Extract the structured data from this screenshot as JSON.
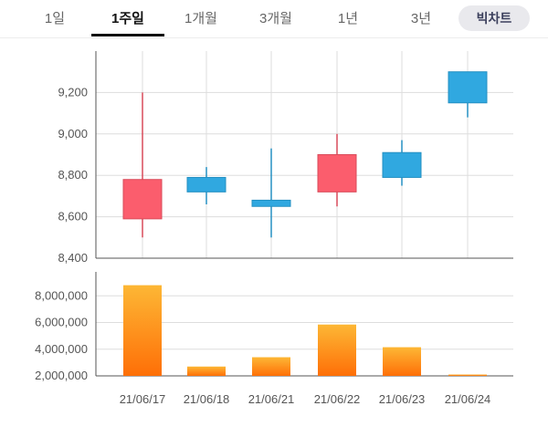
{
  "tabs": {
    "items": [
      {
        "label": "1일"
      },
      {
        "label": "1주일"
      },
      {
        "label": "1개월"
      },
      {
        "label": "3개월"
      },
      {
        "label": "1년"
      },
      {
        "label": "3년"
      }
    ],
    "active_index": 1,
    "pill_label": "빅차트"
  },
  "colors": {
    "up": "#fb5d6d",
    "down": "#30a8e0",
    "volume_top": "#fdb735",
    "volume_bottom": "#fe6f07",
    "grid": "#dddddd",
    "axis": "#555555"
  },
  "chart_data": [
    {
      "type": "candlestick",
      "x": [
        "21/06/17",
        "21/06/18",
        "21/06/21",
        "21/06/22",
        "21/06/23",
        "21/06/24"
      ],
      "open": [
        8590,
        8790,
        8680,
        8720,
        8910,
        9300
      ],
      "close": [
        8780,
        8720,
        8650,
        8900,
        8790,
        9150
      ],
      "high": [
        9200,
        8840,
        8930,
        9000,
        8970,
        9300
      ],
      "low": [
        8500,
        8660,
        8500,
        8650,
        8750,
        9080
      ],
      "ylim": [
        8400,
        9400
      ],
      "yticks": [
        8400,
        8600,
        8800,
        9000,
        9200
      ],
      "ytick_labels": [
        "8,400",
        "8,600",
        "8,800",
        "9,000",
        "9,200"
      ],
      "grid": true
    },
    {
      "type": "bar",
      "categories": [
        "21/06/17",
        "21/06/18",
        "21/06/21",
        "21/06/22",
        "21/06/23",
        "21/06/24"
      ],
      "values": [
        8800000,
        2700000,
        3400000,
        5850000,
        4150000,
        2100000
      ],
      "ylim": [
        2000000,
        9800000
      ],
      "yticks": [
        2000000,
        4000000,
        6000000,
        8000000
      ],
      "ytick_labels": [
        "2,000,000",
        "4,000,000",
        "6,000,000",
        "8,000,000"
      ],
      "grid": true
    }
  ]
}
